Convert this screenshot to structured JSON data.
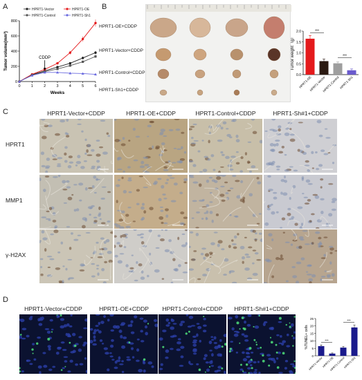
{
  "panels": {
    "a": {
      "letter": "A"
    },
    "b": {
      "letter": "B"
    },
    "c": {
      "letter": "C"
    },
    "d": {
      "letter": "D"
    }
  },
  "chart_data": [
    {
      "type": "line",
      "ylabel": "Tumor volume(mm³)",
      "xlabel": "Weeks",
      "x": [
        0,
        1,
        2,
        3,
        4,
        5,
        6
      ],
      "xlim": [
        0,
        6
      ],
      "ylim": [
        0,
        800
      ],
      "yticks": [
        0,
        200,
        400,
        600,
        800
      ],
      "annotation": "CDDP",
      "annotation_x": 2,
      "series": [
        {
          "name": "HPRT1-Vector",
          "color": "#222222",
          "marker": "circle",
          "values": [
            0,
            90,
            140,
            190,
            240,
            310,
            380
          ]
        },
        {
          "name": "HPRT1-OE",
          "color": "#e41a1c",
          "marker": "circle",
          "values": [
            0,
            95,
            160,
            240,
            380,
            560,
            770
          ]
        },
        {
          "name": "HPRT1-Control",
          "color": "#555555",
          "marker": "square",
          "values": [
            0,
            85,
            130,
            165,
            210,
            260,
            330
          ]
        },
        {
          "name": "HPRT1-Sh1",
          "color": "#6a6adf",
          "marker": "triangle",
          "values": [
            0,
            80,
            120,
            120,
            110,
            105,
            95
          ]
        }
      ]
    },
    {
      "type": "bar",
      "ylabel": "Tumor weight（g）",
      "categories": [
        "HPRT1-OE",
        "HPRT1-Vector",
        "HPRT1-Control",
        "HPRT1-Sh1"
      ],
      "values": [
        1.65,
        0.62,
        0.52,
        0.2
      ],
      "errors": [
        0.15,
        0.1,
        0.06,
        0.06
      ],
      "colors": [
        "#e41a1c",
        "#2b1a12",
        "#9e9e9e",
        "#6a5acd"
      ],
      "ylim": [
        0,
        2.0
      ],
      "yticks": [
        0.0,
        0.5,
        1.0,
        1.5,
        2.0
      ],
      "significance": [
        "***",
        "***"
      ]
    },
    {
      "type": "bar",
      "ylabel": "%TUNEL+ cells",
      "categories": [
        "HPRT1-Vector",
        "HPRT1-OE",
        "HPRT1-Control",
        "HPRT1-Sh1"
      ],
      "values": [
        6.5,
        1.5,
        5.5,
        19
      ],
      "errors": [
        0.8,
        0.4,
        0.7,
        1.5
      ],
      "colors": [
        "#1a1a8c",
        "#1a1a8c",
        "#1a1a8c",
        "#1a1a8c"
      ],
      "ylim": [
        0,
        25
      ],
      "yticks": [
        0,
        5,
        10,
        15,
        20,
        25
      ],
      "significance": [
        "***",
        "***"
      ]
    }
  ],
  "panel_b": {
    "rows": [
      "HPRT1-OE+CDDP",
      "HPRT1-Vector+CDDP",
      "HPRT1-Control+CDDP",
      "HPRT1-Sh1+CDDP"
    ]
  },
  "panel_c": {
    "columns": [
      "HPRT1-Vector+CDDP",
      "HPRT1-OE+CDDP",
      "HPRT1-Control+CDDP",
      "HPRT1-Sh#1+CDDP"
    ],
    "rows": [
      "HPRT1",
      "MMP1",
      "γ-H2AX"
    ]
  },
  "panel_d": {
    "columns": [
      "HPRT1-Vector+CDDP",
      "HPRT1-OE+CDDP",
      "HPRT1-Control+CDDP",
      "HPRT1-Sh#1+CDDP"
    ]
  }
}
